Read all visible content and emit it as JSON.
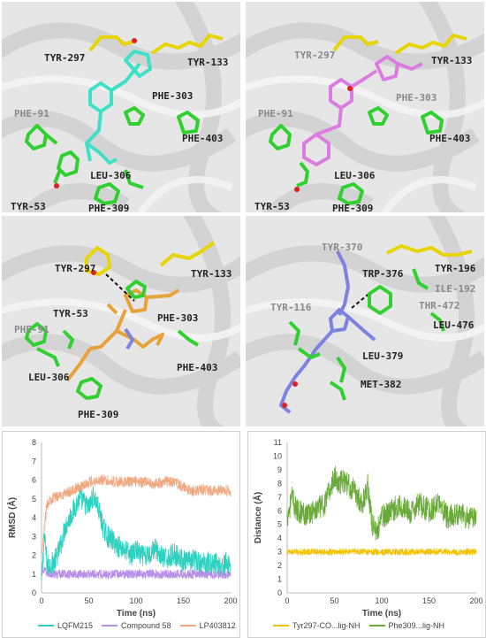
{
  "panels": [
    {
      "id": "a",
      "labels": [
        {
          "text": "TYR-297",
          "tone": "dark"
        },
        {
          "text": "TYR-133",
          "tone": "dark"
        },
        {
          "text": "PHE-303",
          "tone": "dark"
        },
        {
          "text": "PHE-91",
          "tone": "light"
        },
        {
          "text": "PHE-403",
          "tone": "dark"
        },
        {
          "text": "LEU-306",
          "tone": "dark"
        },
        {
          "text": "TYR-53",
          "tone": "dark"
        },
        {
          "text": "PHE-309",
          "tone": "dark"
        }
      ],
      "ligand_color": "#3fe0c8"
    },
    {
      "id": "b",
      "labels": [
        {
          "text": "TYR-297",
          "tone": "light"
        },
        {
          "text": "TYR-133",
          "tone": "dark"
        },
        {
          "text": "PHE-303",
          "tone": "light"
        },
        {
          "text": "PHE-91",
          "tone": "light"
        },
        {
          "text": "PHE-403",
          "tone": "dark"
        },
        {
          "text": "LEU-306",
          "tone": "dark"
        },
        {
          "text": "TYR-53",
          "tone": "dark"
        },
        {
          "text": "PHE-309",
          "tone": "dark"
        }
      ],
      "ligand_color": "#d97ee0"
    },
    {
      "id": "c",
      "labels": [
        {
          "text": "TYR-297",
          "tone": "dark"
        },
        {
          "text": "TYR-133",
          "tone": "dark"
        },
        {
          "text": "TYR-53",
          "tone": "dark"
        },
        {
          "text": "PHE-303",
          "tone": "dark"
        },
        {
          "text": "PHE-91",
          "tone": "light"
        },
        {
          "text": "PHE-403",
          "tone": "dark"
        },
        {
          "text": "LEU-306",
          "tone": "dark"
        },
        {
          "text": "PHE-309",
          "tone": "dark"
        }
      ],
      "ligand_color": "#e8a23a"
    },
    {
      "id": "d",
      "labels": [
        {
          "text": "TYR-370",
          "tone": "light"
        },
        {
          "text": "TRP-376",
          "tone": "dark"
        },
        {
          "text": "TYR-196",
          "tone": "dark"
        },
        {
          "text": "ILE-192",
          "tone": "light"
        },
        {
          "text": "THR-472",
          "tone": "light"
        },
        {
          "text": "TYR-116",
          "tone": "light"
        },
        {
          "text": "LEU-476",
          "tone": "dark"
        },
        {
          "text": "LEU-379",
          "tone": "dark"
        },
        {
          "text": "MET-382",
          "tone": "dark"
        }
      ],
      "ligand_color": "#7b82e0"
    }
  ],
  "chart_data": [
    {
      "type": "line",
      "xlabel": "Time (ns)",
      "ylabel": "RMSD (Å)",
      "xlim": [
        0,
        200
      ],
      "ylim": [
        0,
        8
      ],
      "xticks": [
        0,
        50,
        100,
        150,
        200
      ],
      "yticks": [
        0,
        1,
        2,
        3,
        4,
        5,
        6,
        7,
        8
      ],
      "grid": false,
      "legend_position": "bottom",
      "series": [
        {
          "name": "LQFM215",
          "color": "#2ed0c0",
          "x": [
            0,
            3,
            6,
            10,
            15,
            20,
            25,
            30,
            35,
            40,
            45,
            50,
            55,
            60,
            65,
            70,
            75,
            80,
            85,
            90,
            95,
            100,
            105,
            110,
            115,
            120,
            125,
            130,
            135,
            140,
            145,
            150,
            155,
            160,
            165,
            170,
            175,
            180,
            185,
            190,
            195,
            200
          ],
          "y": [
            0.5,
            3.0,
            1.5,
            1.5,
            1.8,
            2.5,
            3.5,
            4.0,
            4.5,
            5.0,
            4.8,
            4.5,
            5.2,
            4.5,
            3.5,
            3.0,
            2.8,
            2.5,
            2.4,
            2.2,
            2.0,
            2.3,
            2.0,
            1.9,
            2.1,
            2.4,
            2.0,
            1.8,
            1.9,
            2.1,
            1.9,
            1.7,
            1.6,
            1.8,
            1.6,
            1.5,
            1.7,
            1.5,
            1.6,
            1.4,
            1.6,
            1.5
          ],
          "noise": 0.6
        },
        {
          "name": "Compound 58",
          "color": "#b78ee8",
          "x": [
            0,
            10,
            20,
            40,
            60,
            80,
            100,
            120,
            140,
            160,
            180,
            200
          ],
          "y": [
            1.2,
            1.0,
            1.0,
            1.0,
            1.0,
            1.0,
            1.0,
            1.0,
            1.0,
            1.0,
            1.0,
            1.0
          ],
          "noise": 0.25
        },
        {
          "name": "LP403812",
          "color": "#f0a880",
          "x": [
            0,
            3,
            6,
            10,
            15,
            20,
            30,
            40,
            50,
            60,
            70,
            80,
            90,
            100,
            110,
            120,
            130,
            140,
            150,
            160,
            170,
            180,
            190,
            200
          ],
          "y": [
            1.8,
            3.5,
            4.8,
            5.0,
            5.1,
            5.2,
            5.4,
            5.6,
            5.9,
            6.0,
            6.0,
            5.9,
            5.9,
            5.9,
            5.9,
            5.8,
            5.9,
            5.9,
            5.6,
            5.4,
            5.5,
            5.4,
            5.5,
            5.4
          ],
          "noise": 0.3
        }
      ]
    },
    {
      "type": "line",
      "xlabel": "Time (ns)",
      "ylabel": "Distance (Å)",
      "xlim": [
        0,
        200
      ],
      "ylim": [
        0,
        11
      ],
      "xticks": [
        0,
        50,
        100,
        150,
        200
      ],
      "yticks": [
        0,
        1,
        2,
        3,
        4,
        5,
        6,
        7,
        8,
        9,
        10,
        11
      ],
      "grid": false,
      "legend_position": "bottom",
      "series": [
        {
          "name": "Tyr297-CO...lig-NH",
          "color": "#f2c200",
          "x": [
            0,
            20,
            40,
            60,
            80,
            100,
            120,
            140,
            160,
            180,
            200
          ],
          "y": [
            3.0,
            3.0,
            3.0,
            3.0,
            3.0,
            3.0,
            3.0,
            3.0,
            3.0,
            3.0,
            3.0
          ],
          "noise": 0.25
        },
        {
          "name": "Phe309...lig-NH",
          "color": "#6aaa3a",
          "x": [
            0,
            5,
            10,
            20,
            30,
            40,
            45,
            50,
            55,
            60,
            70,
            80,
            85,
            90,
            95,
            100,
            110,
            120,
            130,
            140,
            150,
            160,
            170,
            180,
            190,
            200
          ],
          "y": [
            5.5,
            7.0,
            6.0,
            5.8,
            6.0,
            6.5,
            7.5,
            8.5,
            8.0,
            8.2,
            7.5,
            6.5,
            8.0,
            5.0,
            4.5,
            5.5,
            6.0,
            6.5,
            5.8,
            6.5,
            6.0,
            6.5,
            5.5,
            5.8,
            5.5,
            5.5
          ],
          "noise": 0.9
        }
      ]
    }
  ]
}
